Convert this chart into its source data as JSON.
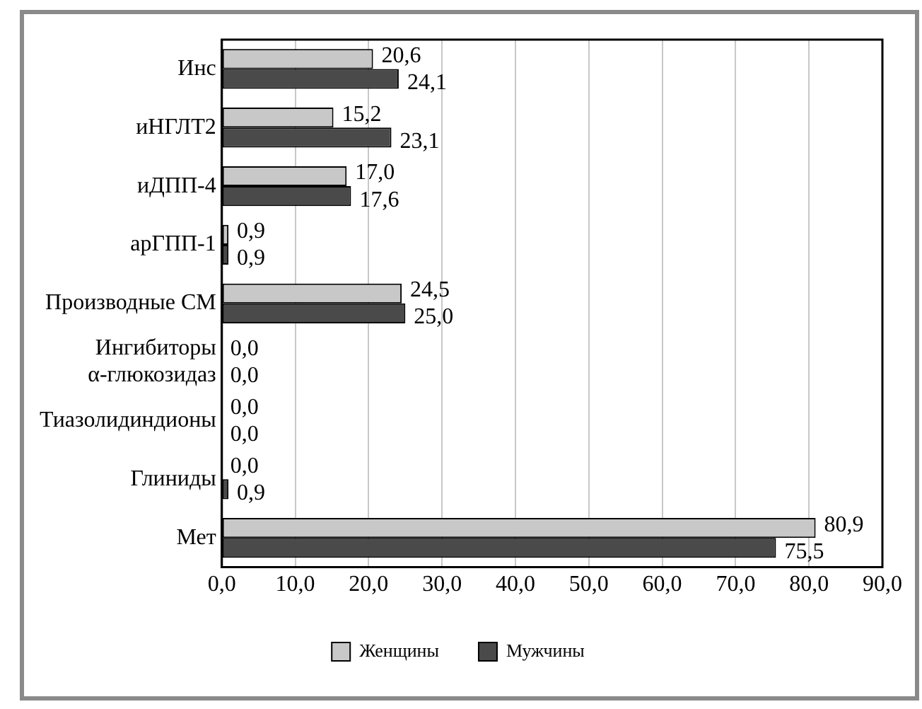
{
  "chart_data": {
    "type": "bar",
    "orientation": "horizontal",
    "categories": [
      "Инс",
      "иНГЛТ2",
      "иДПП-4",
      "арГПП-1",
      "Производные СМ",
      "Ингибиторы α-глюкозидаз",
      "Тиазолидиндионы",
      "Глиниды",
      "Мет"
    ],
    "series": [
      {
        "name": "Женщины",
        "color": "#c8c8c8",
        "values": [
          20.6,
          15.2,
          17.0,
          0.9,
          24.5,
          0.0,
          0.0,
          0.0,
          80.9
        ],
        "value_labels": [
          "20,6",
          "15,2",
          "17,0",
          "0,9",
          "24,5",
          "0,0",
          "0,0",
          "0,0",
          "80,9"
        ]
      },
      {
        "name": "Мужчины",
        "color": "#4a4a4a",
        "values": [
          24.1,
          23.1,
          17.6,
          0.9,
          25.0,
          0.0,
          0.0,
          0.9,
          75.5
        ],
        "value_labels": [
          "24,1",
          "23,1",
          "17,6",
          "0,9",
          "25,0",
          "0,0",
          "0,0",
          "0,9",
          "75,5"
        ]
      }
    ],
    "xlim": [
      0,
      90
    ],
    "xticks": [
      {
        "value": 0,
        "label": "0,0"
      },
      {
        "value": 10,
        "label": "10,0"
      },
      {
        "value": 20,
        "label": "20,0"
      },
      {
        "value": 30,
        "label": "30,0"
      },
      {
        "value": 40,
        "label": "40,0"
      },
      {
        "value": 50,
        "label": "50,0"
      },
      {
        "value": 60,
        "label": "60,0"
      },
      {
        "value": 70,
        "label": "70,0"
      },
      {
        "value": 80,
        "label": "80,0"
      },
      {
        "value": 90,
        "label": "90,0"
      }
    ],
    "grid": "x",
    "legend": "bottom"
  }
}
